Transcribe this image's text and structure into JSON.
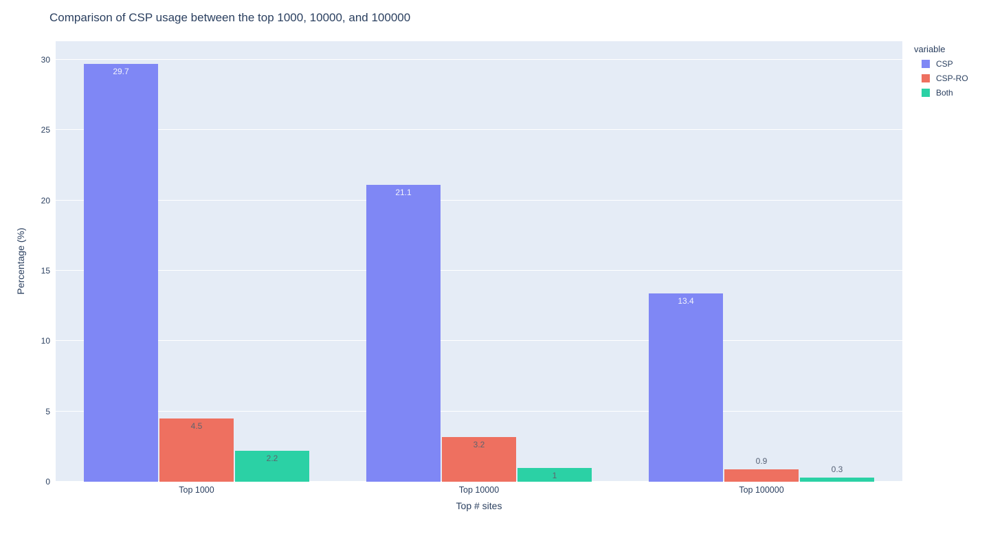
{
  "page": {
    "title": "Comparison of CSP usage between the top 1000, 10000, and 100000"
  },
  "chart_data": {
    "type": "bar",
    "title": "Comparison of CSP usage between the top 1000, 10000, and 100000",
    "xlabel": "Top # sites",
    "ylabel": "Percentage (%)",
    "categories": [
      "Top 1000",
      "Top 10000",
      "Top 100000"
    ],
    "series": [
      {
        "name": "CSP",
        "color": "#7f87f5",
        "values": [
          29.7,
          21.1,
          13.4
        ],
        "inside_text_color": "#f2f3fc"
      },
      {
        "name": "CSP-RO",
        "color": "#ee7060",
        "values": [
          4.5,
          3.2,
          0.9
        ],
        "inside_text_color": "#5e636d"
      },
      {
        "name": "Both",
        "color": "#2bd1a5",
        "values": [
          2.2,
          1,
          0.3
        ],
        "inside_text_color": "#5e636d"
      }
    ],
    "value_labels": [
      [
        "29.7",
        "21.1",
        "13.4"
      ],
      [
        "4.5",
        "3.2",
        "0.9"
      ],
      [
        "2.2",
        "1",
        "0.3"
      ]
    ],
    "outside_text_color": "#545f73",
    "ylim": [
      0,
      31.32
    ],
    "yticks": [
      0,
      5,
      10,
      15,
      20,
      25,
      30
    ],
    "grid": true,
    "grid_color": "#ffffff",
    "plot_bg": "#e5ecf6",
    "font_color": "#2a3f5f",
    "legend_title": "variable",
    "legend_position": "right"
  }
}
